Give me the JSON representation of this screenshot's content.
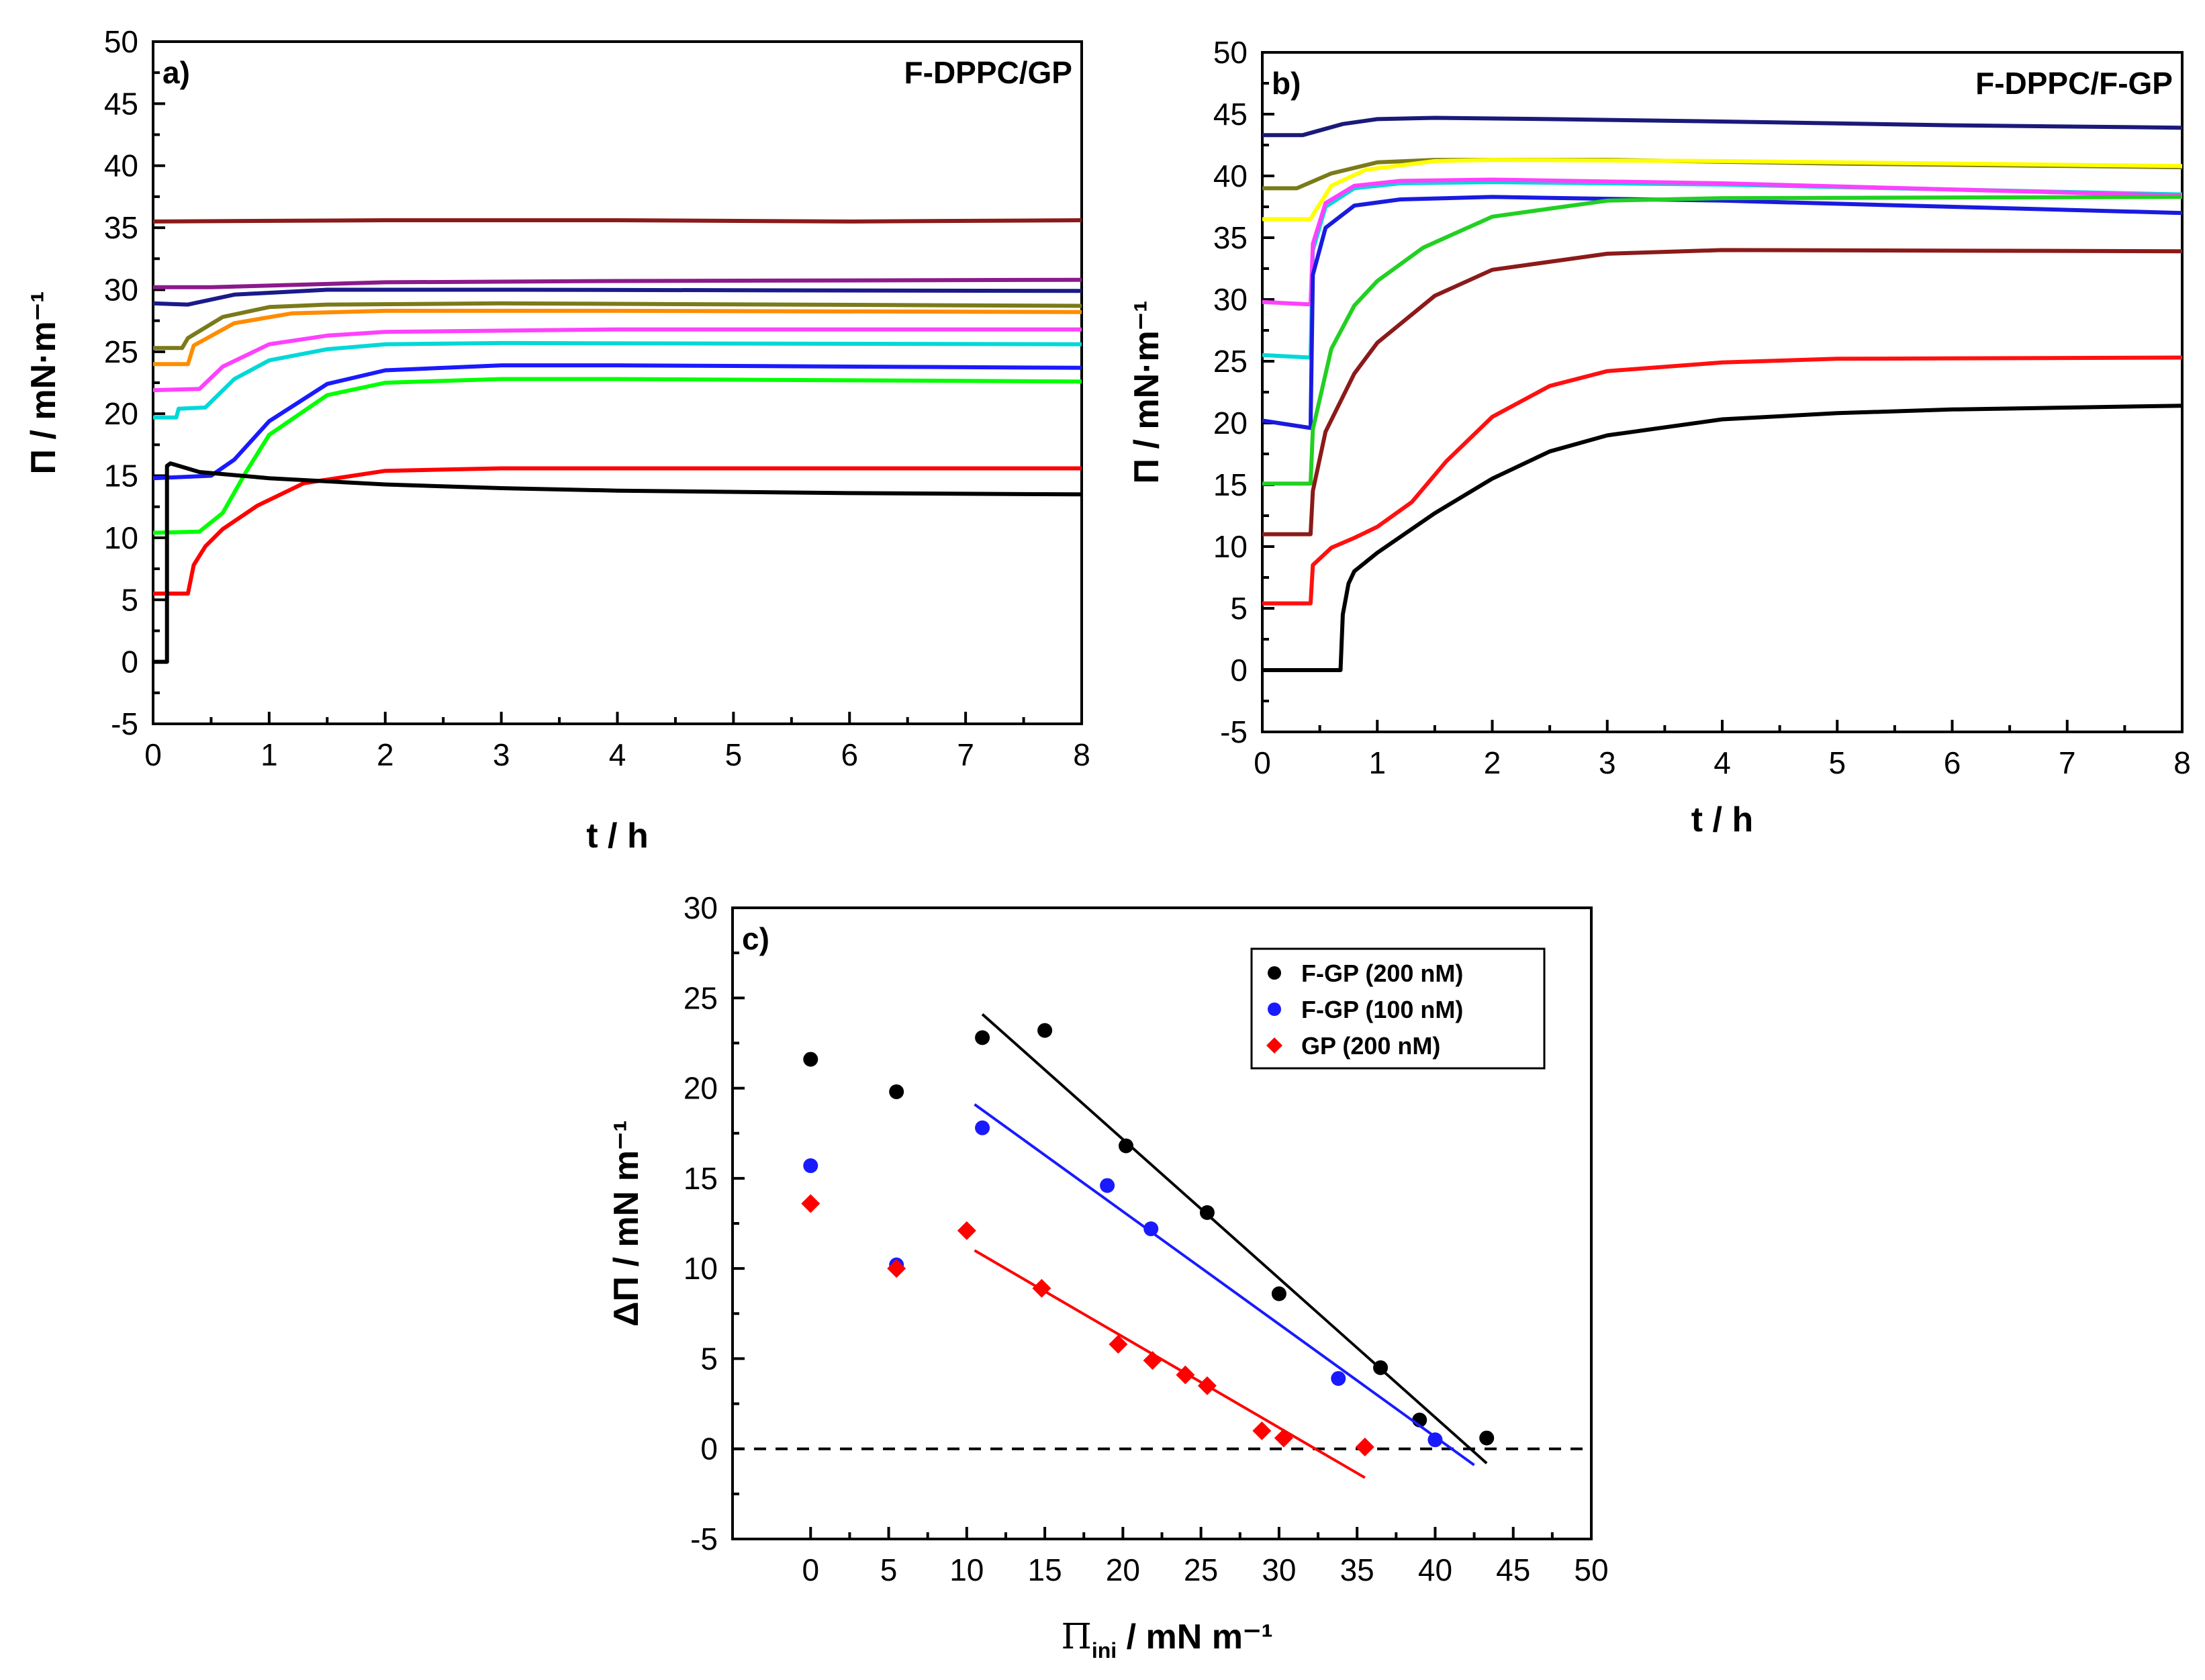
{
  "chart_data": [
    {
      "panel": "a)",
      "type": "line",
      "title": "F-DPPC/GP",
      "xlabel": "t / h",
      "ylabel": "Π / mN·m⁻¹",
      "xlim": [
        0,
        8
      ],
      "ylim": [
        -5,
        50
      ],
      "xticks": [
        "0",
        "1",
        "2",
        "3",
        "4",
        "5",
        "6",
        "7",
        "8"
      ],
      "yticks": [
        "-5",
        "0",
        "5",
        "10",
        "15",
        "20",
        "25",
        "30",
        "35",
        "40",
        "45",
        "50"
      ],
      "series": [
        {
          "color": "#8b1a1a",
          "x": [
            0,
            2,
            4,
            6,
            8
          ],
          "y": [
            35.5,
            35.6,
            35.6,
            35.5,
            35.6
          ]
        },
        {
          "color": "#8b1a8b",
          "x": [
            0,
            0.5,
            2,
            4,
            8
          ],
          "y": [
            30.2,
            30.2,
            30.6,
            30.7,
            30.8
          ]
        },
        {
          "color": "#1a1a8b",
          "x": [
            0,
            0.3,
            0.7,
            1.5,
            3,
            8
          ],
          "y": [
            28.9,
            28.8,
            29.6,
            30.0,
            30.0,
            29.9
          ]
        },
        {
          "color": "#7a7a1a",
          "x": [
            0,
            0.25,
            0.3,
            0.6,
            1.0,
            1.5,
            3,
            8
          ],
          "y": [
            25.3,
            25.3,
            26.1,
            27.8,
            28.6,
            28.8,
            28.9,
            28.7
          ]
        },
        {
          "color": "#ff8c00",
          "x": [
            0,
            0.3,
            0.35,
            0.7,
            1.2,
            2,
            4,
            8
          ],
          "y": [
            24.0,
            24.0,
            25.5,
            27.3,
            28.1,
            28.3,
            28.3,
            28.2
          ]
        },
        {
          "color": "#ff40ff",
          "x": [
            0,
            0.4,
            0.6,
            1.0,
            1.5,
            2,
            4,
            8
          ],
          "y": [
            21.9,
            22.0,
            23.8,
            25.6,
            26.3,
            26.6,
            26.8,
            26.8
          ]
        },
        {
          "color": "#00d8d8",
          "x": [
            0,
            0.2,
            0.22,
            0.45,
            0.7,
            1.0,
            1.5,
            2,
            3,
            8
          ],
          "y": [
            19.7,
            19.7,
            20.4,
            20.5,
            22.8,
            24.3,
            25.2,
            25.6,
            25.7,
            25.6
          ]
        },
        {
          "color": "#1a1aff",
          "x": [
            0,
            0.5,
            0.7,
            1.0,
            1.5,
            2,
            3,
            4,
            8
          ],
          "y": [
            14.8,
            15.0,
            16.3,
            19.4,
            22.4,
            23.5,
            23.9,
            23.9,
            23.7
          ]
        },
        {
          "color": "#00ff00",
          "x": [
            0,
            0.4,
            0.6,
            0.8,
            1.0,
            1.5,
            2,
            3,
            4,
            8
          ],
          "y": [
            10.4,
            10.5,
            12.0,
            15.3,
            18.3,
            21.5,
            22.5,
            22.8,
            22.8,
            22.6
          ]
        },
        {
          "color": "#ff0000",
          "x": [
            0,
            0.3,
            0.35,
            0.45,
            0.6,
            0.9,
            1.3,
            2,
            3,
            8
          ],
          "y": [
            5.5,
            5.5,
            7.8,
            9.3,
            10.7,
            12.6,
            14.4,
            15.4,
            15.6,
            15.6
          ]
        },
        {
          "color": "#000000",
          "x": [
            0,
            0.12,
            0.12,
            0.15,
            0.4,
            1,
            2,
            3,
            4,
            6,
            8
          ],
          "y": [
            0,
            0,
            15.8,
            16.0,
            15.3,
            14.8,
            14.3,
            14.0,
            13.8,
            13.6,
            13.5
          ]
        }
      ]
    },
    {
      "panel": "b)",
      "type": "line",
      "title": "F-DPPC/F-GP",
      "xlabel": "t / h",
      "ylabel": "Π / mN·m⁻¹",
      "xlim": [
        0,
        8
      ],
      "ylim": [
        -5,
        50
      ],
      "xticks": [
        "0",
        "1",
        "2",
        "3",
        "4",
        "5",
        "6",
        "7",
        "8"
      ],
      "yticks": [
        "-5",
        "0",
        "5",
        "10",
        "15",
        "20",
        "25",
        "30",
        "35",
        "40",
        "45",
        "50"
      ],
      "series": [
        {
          "color": "#1a1a7a",
          "x": [
            0,
            0.35,
            0.7,
            1.0,
            1.5,
            2.5,
            4,
            6,
            8
          ],
          "y": [
            43.3,
            43.3,
            44.2,
            44.6,
            44.7,
            44.6,
            44.4,
            44.1,
            43.9
          ]
        },
        {
          "color": "#7a7a1a",
          "x": [
            0,
            0.3,
            0.6,
            1.0,
            1.5,
            3,
            5,
            8
          ],
          "y": [
            39.0,
            39.0,
            40.2,
            41.1,
            41.3,
            41.3,
            41.0,
            40.7
          ]
        },
        {
          "color": "#ffff00",
          "x": [
            0,
            0.42,
            0.45,
            0.6,
            0.9,
            1.5,
            2,
            4,
            8
          ],
          "y": [
            36.5,
            36.5,
            37.0,
            39.2,
            40.5,
            41.2,
            41.3,
            41.2,
            40.8
          ]
        },
        {
          "color": "#00d8d8",
          "x": [
            0,
            0.42,
            0.44,
            0.55,
            0.8,
            1.2,
            2,
            4,
            8
          ],
          "y": [
            25.5,
            25.3,
            34.0,
            37.5,
            39.0,
            39.4,
            39.5,
            39.3,
            38.5
          ]
        },
        {
          "color": "#ff40ff",
          "x": [
            0,
            0.42,
            0.44,
            0.55,
            0.8,
            1.2,
            2,
            4,
            8
          ],
          "y": [
            29.8,
            29.6,
            34.5,
            37.8,
            39.2,
            39.6,
            39.7,
            39.4,
            38.4
          ]
        },
        {
          "color": "#1a1ae0",
          "x": [
            0,
            0.42,
            0.44,
            0.55,
            0.8,
            1.2,
            2,
            4,
            8
          ],
          "y": [
            20.2,
            19.6,
            32.0,
            35.8,
            37.6,
            38.1,
            38.3,
            38.0,
            37.0
          ]
        },
        {
          "color": "#22d022",
          "x": [
            0,
            0.42,
            0.44,
            0.6,
            0.8,
            1.0,
            1.4,
            2,
            3,
            4,
            8
          ],
          "y": [
            15.1,
            15.1,
            19.5,
            26.0,
            29.5,
            31.5,
            34.2,
            36.7,
            38.0,
            38.2,
            38.3
          ]
        },
        {
          "color": "#8b1a1a",
          "x": [
            0,
            0.42,
            0.44,
            0.55,
            0.8,
            1.0,
            1.5,
            2,
            3,
            4,
            8
          ],
          "y": [
            11.0,
            11.0,
            14.5,
            19.3,
            24.0,
            26.5,
            30.3,
            32.4,
            33.7,
            34.0,
            33.9
          ]
        },
        {
          "color": "#ff1010",
          "x": [
            0,
            0.42,
            0.44,
            0.6,
            0.8,
            1.0,
            1.3,
            1.6,
            2,
            2.5,
            3,
            4,
            5,
            8
          ],
          "y": [
            5.4,
            5.4,
            8.5,
            9.9,
            10.7,
            11.6,
            13.6,
            16.9,
            20.5,
            23.0,
            24.2,
            24.9,
            25.2,
            25.3
          ]
        },
        {
          "color": "#000000",
          "x": [
            0,
            0.68,
            0.7,
            0.75,
            0.8,
            1.0,
            1.5,
            2,
            2.5,
            3,
            4,
            5,
            6,
            8
          ],
          "y": [
            0,
            0,
            4.5,
            7.0,
            8.0,
            9.5,
            12.7,
            15.5,
            17.7,
            19.0,
            20.3,
            20.8,
            21.1,
            21.4
          ]
        }
      ]
    },
    {
      "panel": "c)",
      "type": "scatter",
      "xlabel_main": "Π",
      "xlabel_sub": "ini",
      "xlabel_rest": " / mN m⁻¹",
      "ylabel": "ΔΠ / mN m⁻¹",
      "xlim": [
        -5,
        50
      ],
      "ylim": [
        -5,
        30
      ],
      "xticks": [
        "0",
        "5",
        "10",
        "15",
        "20",
        "25",
        "30",
        "35",
        "40",
        "45",
        "50"
      ],
      "yticks": [
        "-5",
        "0",
        "5",
        "10",
        "15",
        "20",
        "25",
        "30"
      ],
      "zero_line": true,
      "legend": [
        "F-GP (200 nM)",
        "F-GP (100 nM)",
        "GP (200 nM)"
      ],
      "series": [
        {
          "name": "F-GP (200 nM)",
          "color": "#000000",
          "marker": "circle",
          "x": [
            0,
            5.5,
            11,
            15,
            20.2,
            25.4,
            30,
            36.5,
            39,
            43.3
          ],
          "y": [
            21.6,
            19.8,
            22.8,
            23.2,
            16.8,
            13.1,
            8.6,
            4.5,
            1.6,
            0.6
          ],
          "fit": {
            "x": [
              11,
              43.3
            ],
            "y": [
              24.1,
              -0.8
            ]
          }
        },
        {
          "name": "F-GP (100 nM)",
          "color": "#1a1aff",
          "marker": "circle",
          "x": [
            0,
            5.5,
            11,
            19,
            21.8,
            33.8,
            40
          ],
          "y": [
            15.7,
            10.2,
            17.8,
            14.6,
            12.2,
            3.9,
            0.5
          ],
          "fit": {
            "x": [
              10.5,
              42.5
            ],
            "y": [
              19.1,
              -0.9
            ]
          }
        },
        {
          "name": "GP (200 nM)",
          "color": "#ff0000",
          "marker": "diamond",
          "x": [
            0,
            5.5,
            10,
            14.8,
            19.7,
            21.9,
            24,
            25.4,
            28.9,
            30.3,
            35.5
          ],
          "y": [
            13.6,
            10.0,
            12.1,
            8.9,
            5.8,
            4.9,
            4.1,
            3.5,
            1.0,
            0.6,
            0.1
          ],
          "fit": {
            "x": [
              10.5,
              35.5
            ],
            "y": [
              11.0,
              -1.6
            ]
          }
        }
      ]
    }
  ]
}
